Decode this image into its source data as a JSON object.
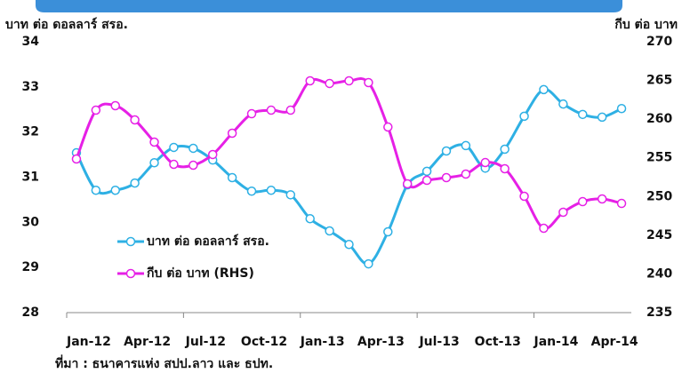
{
  "chart_data": {
    "type": "line",
    "title": "บาท ต่อ ดอลลาร์ สรอ.",
    "y2_title": "กีบ ต่อ บาท",
    "source": "ที่มา : ธนาคารแห่ง สปป.ลาว และ ธปท.",
    "categories": [
      "Jan-12",
      null,
      null,
      "Apr-12",
      null,
      null,
      "Jul-12",
      null,
      null,
      "Oct-12",
      null,
      null,
      "Jan-13",
      null,
      null,
      "Apr-13",
      null,
      null,
      "Jul-13",
      null,
      null,
      "Oct-13",
      null,
      null,
      "Jan-14",
      null,
      null,
      "Apr-14",
      null
    ],
    "series": [
      {
        "name": "บาท ต่อ ดอลลาร์ สรอ.",
        "color": "#2eb0e4",
        "values": [
          31.54,
          30.71,
          30.71,
          30.87,
          31.32,
          31.66,
          31.64,
          31.38,
          30.99,
          30.69,
          30.71,
          30.61,
          30.08,
          29.81,
          29.51,
          29.08,
          29.79,
          30.83,
          31.13,
          31.58,
          31.7,
          31.2,
          31.62,
          32.35,
          32.94,
          32.62,
          32.39,
          32.33,
          32.52
        ]
      },
      {
        "name": "กีบ ต่อ บาท  (RHS)",
        "color": "#e620e6",
        "axis": "y2",
        "values": [
          254.85,
          261.16,
          261.74,
          259.9,
          257.03,
          254.16,
          254.05,
          255.43,
          258.18,
          260.7,
          261.16,
          261.16,
          264.95,
          264.61,
          264.95,
          264.72,
          258.98,
          251.64,
          252.1,
          252.44,
          252.9,
          254.39,
          253.59,
          250.03,
          245.9,
          247.97,
          249.34,
          249.69,
          249.11
        ]
      }
    ],
    "ylim": [
      28,
      34
    ],
    "yticks": [
      28,
      29,
      30,
      31,
      32,
      33,
      34
    ],
    "y2lim": [
      235,
      270
    ],
    "y2ticks": [
      235,
      240,
      245,
      250,
      255,
      260,
      265,
      270
    ],
    "grid": false,
    "legend": "lower left"
  }
}
